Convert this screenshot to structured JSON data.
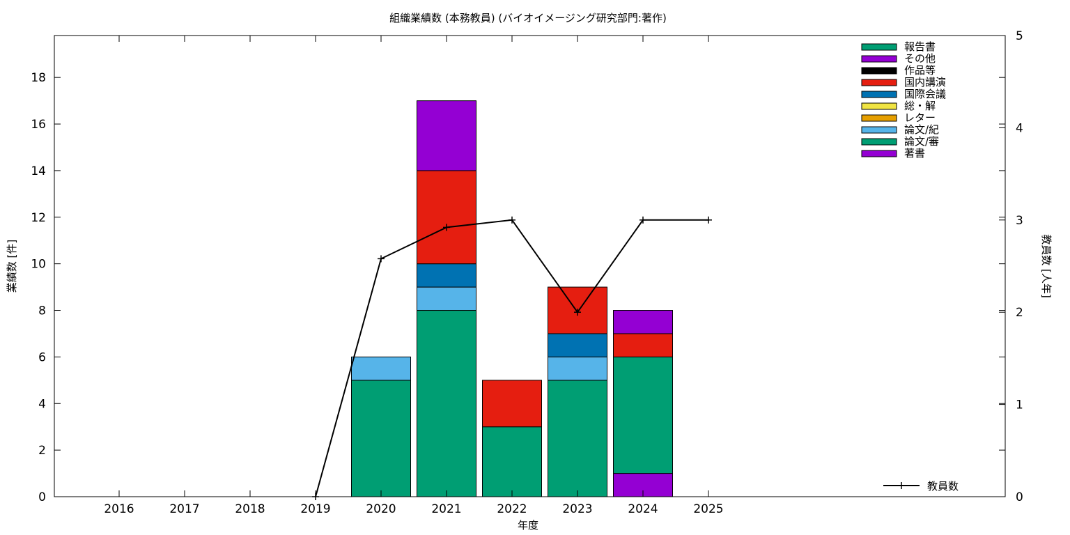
{
  "chart_data": {
    "type": "bar",
    "stacked": true,
    "title": "組織業績数 (本務教員) (バイオイメージング研究部門:著作)",
    "xlabel": "年度",
    "ylabel": "業績数 [件]",
    "y2label": "教員数 [人年]",
    "categories": [
      "2016",
      "2017",
      "2018",
      "2019",
      "2020",
      "2021",
      "2022",
      "2023",
      "2024",
      "2025"
    ],
    "ylim": [
      0,
      19.8
    ],
    "yticks": [
      0,
      2,
      4,
      6,
      8,
      10,
      12,
      14,
      16,
      18
    ],
    "y2lim": [
      0,
      5
    ],
    "y2ticks": [
      0,
      1,
      2,
      3,
      4,
      5
    ],
    "grid": false,
    "legend_position": "top-right",
    "series": [
      {
        "name": "著書",
        "color": "#9400d3",
        "values": [
          0,
          0,
          0,
          0,
          0,
          0,
          0,
          0,
          1,
          0
        ]
      },
      {
        "name": "論文/審",
        "color": "#009e73",
        "values": [
          0,
          0,
          0,
          0,
          5,
          8,
          3,
          5,
          5,
          0
        ]
      },
      {
        "name": "論文/紀",
        "color": "#56b4e9",
        "values": [
          0,
          0,
          0,
          0,
          1,
          1,
          0,
          1,
          0,
          0
        ]
      },
      {
        "name": "レター",
        "color": "#e69f00",
        "values": [
          0,
          0,
          0,
          0,
          0,
          0,
          0,
          0,
          0,
          0
        ]
      },
      {
        "name": "総・解",
        "color": "#f0e442",
        "values": [
          0,
          0,
          0,
          0,
          0,
          0,
          0,
          0,
          0,
          0
        ]
      },
      {
        "name": "国際会議",
        "color": "#0072b2",
        "values": [
          0,
          0,
          0,
          0,
          0,
          1,
          0,
          1,
          0,
          0
        ]
      },
      {
        "name": "国内講演",
        "color": "#e51e10",
        "values": [
          0,
          0,
          0,
          0,
          0,
          4,
          2,
          2,
          1,
          0
        ]
      },
      {
        "name": "作品等",
        "color": "#000000",
        "values": [
          0,
          0,
          0,
          0,
          0,
          0,
          0,
          0,
          0,
          0
        ]
      },
      {
        "name": "その他",
        "color": "#9400d3",
        "values": [
          0,
          0,
          0,
          0,
          0,
          3,
          0,
          0,
          1,
          0
        ]
      },
      {
        "name": "報告書",
        "color": "#009e73",
        "values": [
          0,
          0,
          0,
          0,
          0,
          0,
          0,
          0,
          0,
          0
        ]
      }
    ],
    "line_series": {
      "name": "教員数",
      "axis": "y2",
      "color": "#000000",
      "categories": [
        "2019",
        "2020",
        "2021",
        "2022",
        "2023",
        "2024",
        "2025"
      ],
      "values": [
        0,
        2.58,
        2.92,
        3.0,
        2.0,
        3.0,
        3.0
      ]
    }
  }
}
